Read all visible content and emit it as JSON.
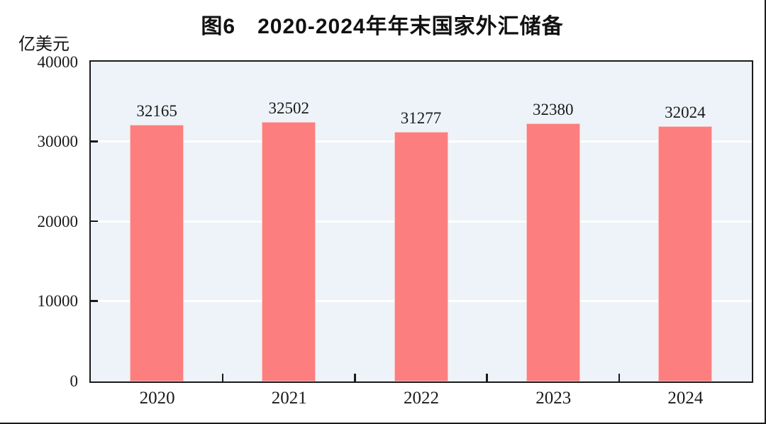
{
  "chart_data": {
    "type": "bar",
    "title": "图6　2020-2024年年末国家外汇储备",
    "y_unit_label": "亿美元",
    "categories": [
      "2020",
      "2021",
      "2022",
      "2023",
      "2024"
    ],
    "values": [
      32165,
      32502,
      31277,
      32380,
      32024
    ],
    "data_labels": [
      "32165",
      "32502",
      "31277",
      "32380",
      "32024"
    ],
    "ylim": [
      0,
      40000
    ],
    "yticks": [
      0,
      10000,
      20000,
      30000,
      40000
    ],
    "ytick_labels": [
      "0",
      "10000",
      "20000",
      "30000",
      "40000"
    ],
    "grid": "horizontal white gridlines at 10000/20000/30000",
    "legend": "none",
    "colors": {
      "bar_fill": "#FC7E7E",
      "plot_background": "#EDF3F8",
      "gridline": "#FFFFFF",
      "axis_border": "#1A1A1A",
      "text": "#1A1A1A",
      "page_background": "#FFFFFF"
    }
  }
}
